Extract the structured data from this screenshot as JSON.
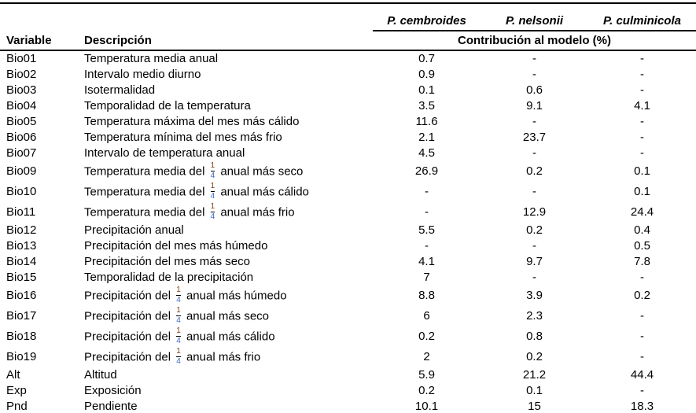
{
  "colors": {
    "background": "#ffffff",
    "text": "#000000",
    "rule": "#000000",
    "fraction_numerator": "#7a3f16",
    "fraction_denominator": "#3f6bc4"
  },
  "table": {
    "variable_label": "Variable",
    "description_label": "Descripción",
    "species": [
      "P. cembroides",
      "P. nelsonii",
      "P. culminicola"
    ],
    "span_header": "Contribución al modelo (%)",
    "empty_value": "-",
    "fraction_token": "[1/4]",
    "fraction": {
      "numerator": "1",
      "denominator": "4"
    },
    "rows": [
      {
        "variable": "Bio01",
        "description": "Temperatura media anual",
        "values": [
          "0.7",
          "-",
          "-"
        ]
      },
      {
        "variable": "Bio02",
        "description": "Intervalo medio diurno",
        "values": [
          "0.9",
          "-",
          "-"
        ]
      },
      {
        "variable": "Bio03",
        "description": "Isotermalidad",
        "values": [
          "0.1",
          "0.6",
          "-"
        ]
      },
      {
        "variable": "Bio04",
        "description": "Temporalidad de la temperatura",
        "values": [
          "3.5",
          "9.1",
          "4.1"
        ]
      },
      {
        "variable": "Bio05",
        "description": "Temperatura máxima del mes más cálido",
        "values": [
          "11.6",
          "-",
          "-"
        ]
      },
      {
        "variable": "Bio06",
        "description": "Temperatura mínima del mes más frio",
        "values": [
          "2.1",
          "23.7",
          "-"
        ]
      },
      {
        "variable": "Bio07",
        "description": "Intervalo de temperatura anual",
        "values": [
          "4.5",
          "-",
          "-"
        ]
      },
      {
        "variable": "Bio09",
        "description": "Temperatura media del [1/4] anual más seco",
        "values": [
          "26.9",
          "0.2",
          "0.1"
        ]
      },
      {
        "variable": "Bio10",
        "description": "Temperatura media del [1/4] anual más cálido",
        "values": [
          "-",
          "-",
          "0.1"
        ]
      },
      {
        "variable": "Bio11",
        "description": "Temperatura media del [1/4] anual más frio",
        "values": [
          "-",
          "12.9",
          "24.4"
        ]
      },
      {
        "variable": "Bio12",
        "description": "Precipitación anual",
        "values": [
          "5.5",
          "0.2",
          "0.4"
        ]
      },
      {
        "variable": "Bio13",
        "description": "Precipitación del mes más húmedo",
        "values": [
          "-",
          "-",
          "0.5"
        ]
      },
      {
        "variable": "Bio14",
        "description": "Precipitación del mes más seco",
        "values": [
          "4.1",
          "9.7",
          "7.8"
        ]
      },
      {
        "variable": "Bio15",
        "description": "Temporalidad de la precipitación",
        "values": [
          "7",
          "-",
          "-"
        ]
      },
      {
        "variable": "Bio16",
        "description": "Precipitación del [1/4] anual más húmedo",
        "values": [
          "8.8",
          "3.9",
          "0.2"
        ]
      },
      {
        "variable": "Bio17",
        "description": "Precipitación del [1/4] anual más seco",
        "values": [
          "6",
          "2.3",
          "-"
        ]
      },
      {
        "variable": "Bio18",
        "description": "Precipitación del [1/4] anual más cálido",
        "values": [
          "0.2",
          "0.8",
          "-"
        ]
      },
      {
        "variable": "Bio19",
        "description": "Precipitación del [1/4] anual más frio",
        "values": [
          "2",
          "0.2",
          "-"
        ]
      },
      {
        "variable": "Alt",
        "description": "Altitud",
        "values": [
          "5.9",
          "21.2",
          "44.4"
        ]
      },
      {
        "variable": "Exp",
        "description": "Exposición",
        "values": [
          "0.2",
          "0.1",
          "-"
        ]
      },
      {
        "variable": "Pnd",
        "description": "Pendiente",
        "values": [
          "10.1",
          "15",
          "18.3"
        ]
      }
    ]
  }
}
